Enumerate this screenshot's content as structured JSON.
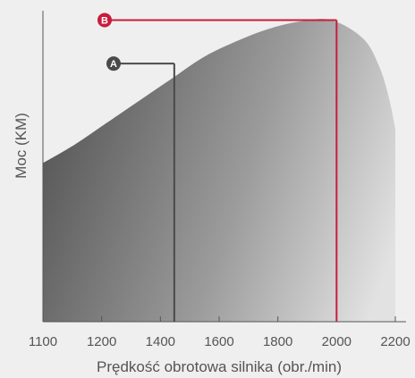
{
  "chart_data": {
    "type": "area",
    "xlabel": "Prędkość obrotowa silnika (obr./min)",
    "ylabel": "Moc (KM)",
    "x_ticks": [
      1100,
      1200,
      1400,
      1600,
      1800,
      2000,
      2200
    ],
    "x_tick_labels": [
      "1100",
      "1200",
      "1400",
      "1600",
      "1800",
      "2000",
      "2200"
    ],
    "xlim": [
      1100,
      2200
    ],
    "ylim": [
      0,
      100
    ],
    "grid": false,
    "curve": {
      "x": [
        1100,
        1200,
        1300,
        1400,
        1500,
        1600,
        1700,
        1800,
        1900,
        2000,
        2100,
        2150,
        2180,
        2200
      ],
      "y": [
        51,
        57,
        64,
        71,
        78,
        85,
        90,
        94,
        96.5,
        97,
        91,
        82,
        72,
        62
      ]
    },
    "markers": [
      {
        "label": "A",
        "x": 1510,
        "y": 83,
        "color": "#4a4a4a"
      },
      {
        "label": "B",
        "x": 2000,
        "y": 97,
        "color": "#c81c3c"
      }
    ]
  }
}
